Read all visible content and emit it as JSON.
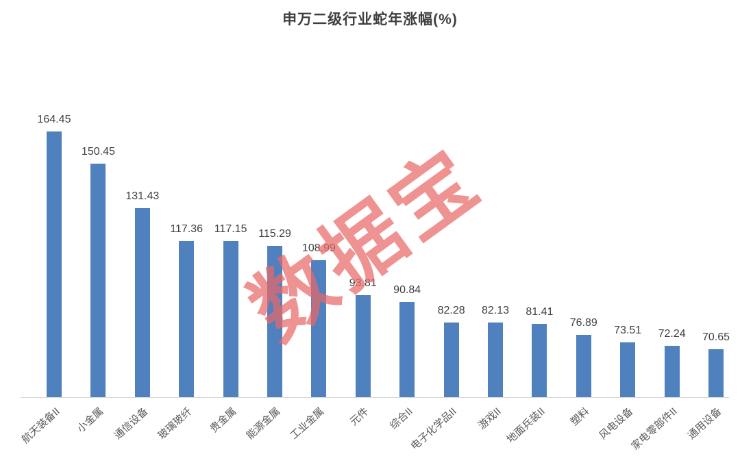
{
  "title": "申万二级行业蛇年涨幅(%)",
  "watermark": "数据宝",
  "colors": {
    "bar": "#4e81bd",
    "title": "#3f3f3f",
    "value_label": "#3f3f3f",
    "category_label": "#595959",
    "axis_line": "#d9d9d9",
    "watermark": "#e96868",
    "background": "#ffffff"
  },
  "chart_data": {
    "type": "bar",
    "title": "申万二级行业蛇年涨幅(%)",
    "categories": [
      "航天装备II",
      "小金属",
      "通信设备",
      "玻璃玻纤",
      "贵金属",
      "能源金属",
      "工业金属",
      "元件",
      "综合II",
      "电子化学品II",
      "游戏II",
      "地面兵装II",
      "塑料",
      "风电设备",
      "家电零部件II",
      "通用设备"
    ],
    "values": [
      164.45,
      150.45,
      131.43,
      117.36,
      117.15,
      115.29,
      108.99,
      93.81,
      90.84,
      82.28,
      82.13,
      81.41,
      76.89,
      73.51,
      72.24,
      70.65
    ],
    "value_labels": [
      "164.45",
      "150.45",
      "131.43",
      "117.36",
      "117.15",
      "115.29",
      "108.99",
      "93.81",
      "90.84",
      "82.28",
      "82.13",
      "81.41",
      "76.89",
      "73.51",
      "72.24",
      "70.65"
    ],
    "xlabel": "",
    "ylabel": "",
    "ylim": [
      50,
      170
    ],
    "grid": false,
    "legend": "none",
    "bar_color": "#4e81bd",
    "value_labels_visible": true,
    "x_labels_rotation_deg": -42,
    "watermark": "数据宝"
  }
}
